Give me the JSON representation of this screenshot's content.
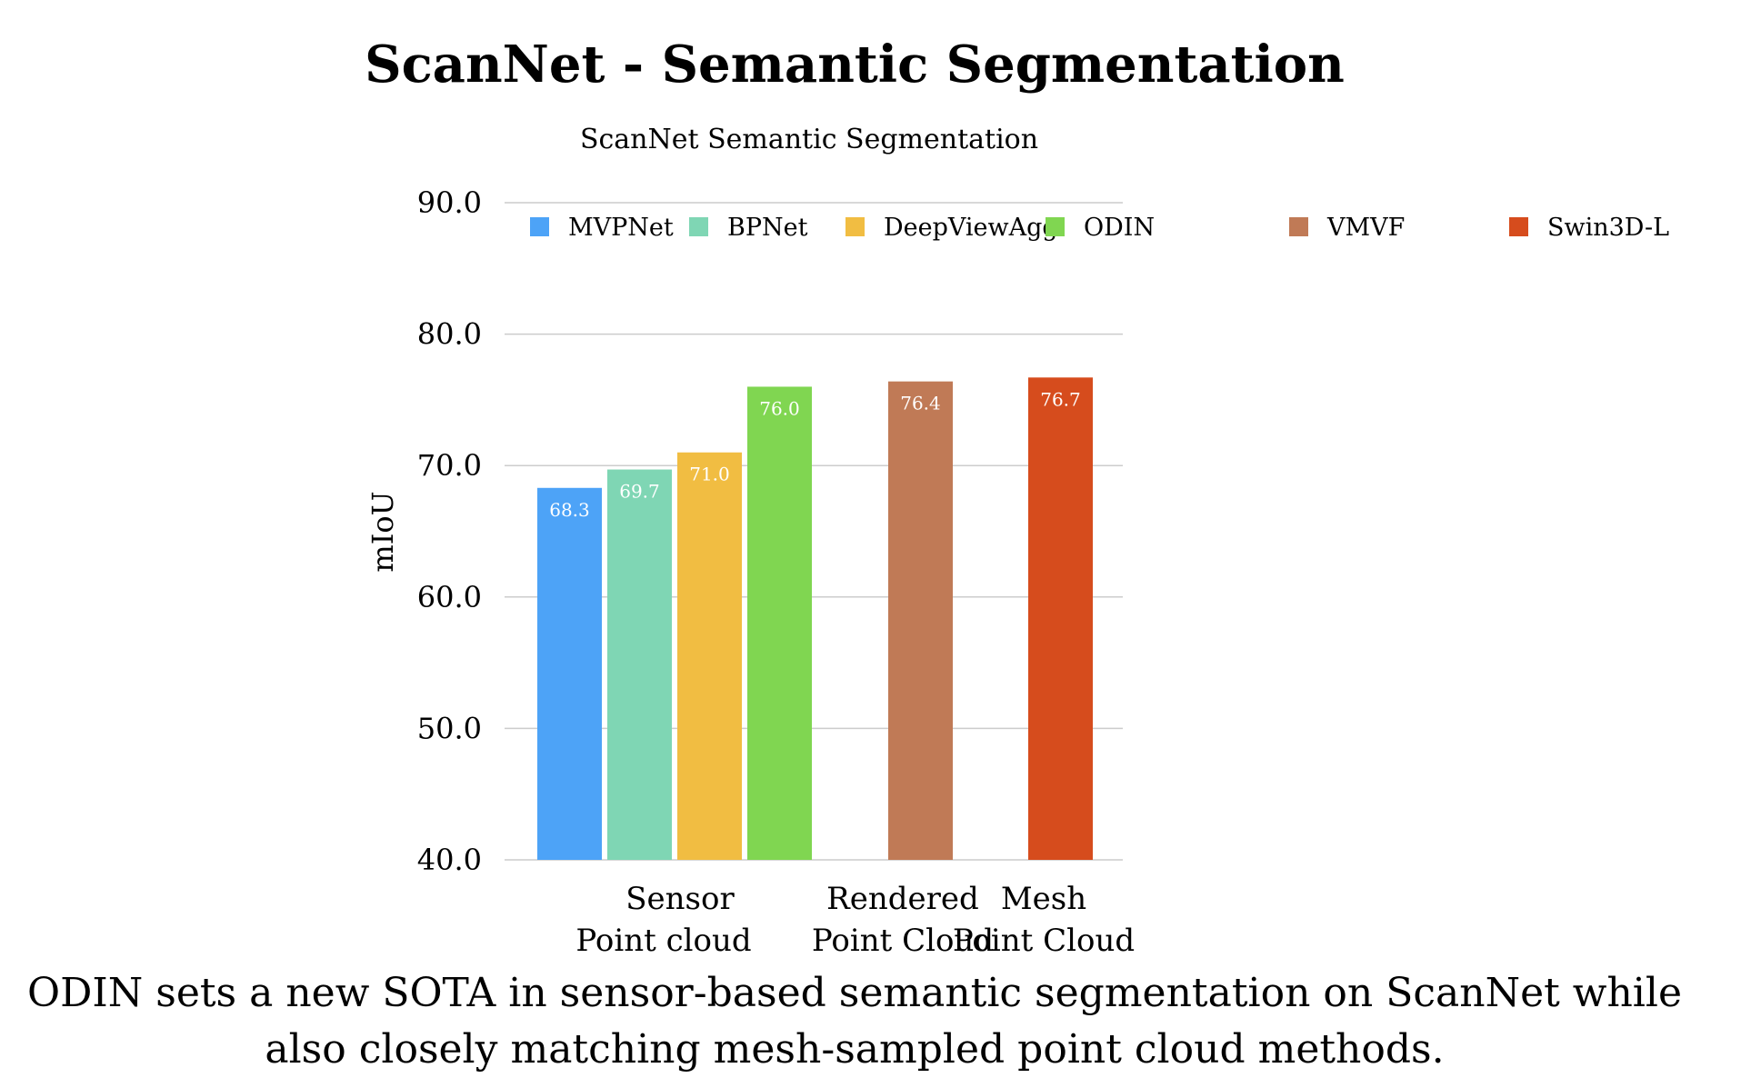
{
  "page": {
    "title": "ScanNet - Semantic Segmentation",
    "caption": "ODIN sets a new SOTA in sensor-based semantic segmentation on ScanNet while also closely matching mesh-sampled point cloud methods."
  },
  "chart_data": {
    "type": "bar",
    "title": "ScanNet Semantic Segmentation",
    "xlabel": "",
    "ylabel": "mIoU",
    "ylim": [
      40,
      90
    ],
    "yticks": [
      "40.0",
      "50.0",
      "60.0",
      "70.0",
      "80.0",
      "90.0"
    ],
    "grid": true,
    "legend_position": "top",
    "categories": [
      {
        "label_lines": [
          "Sensor",
          "Point cloud"
        ],
        "series": [
          "MVPNet",
          "BPNet",
          "DeepViewAgg",
          "ODIN"
        ]
      },
      {
        "label_lines": [
          "Rendered",
          "Point Cloud"
        ],
        "series": [
          "VMVF"
        ]
      },
      {
        "label_lines": [
          "Mesh",
          "Point Cloud"
        ],
        "series": [
          "Swin3D-L"
        ]
      }
    ],
    "series": [
      {
        "name": "MVPNet",
        "color": "#4da3f7",
        "value": 68.3,
        "label": "68.3"
      },
      {
        "name": "BPNet",
        "color": "#7fd6b4",
        "value": 69.7,
        "label": "69.7"
      },
      {
        "name": "DeepViewAgg",
        "color": "#f1bd42",
        "value": 71.0,
        "label": "71.0"
      },
      {
        "name": "ODIN",
        "color": "#80d651",
        "value": 76.0,
        "label": "76.0"
      },
      {
        "name": "VMVF",
        "color": "#c07a56",
        "value": 76.4,
        "label": "76.4"
      },
      {
        "name": "Swin3D-L",
        "color": "#d64c1d",
        "value": 76.7,
        "label": "76.7"
      }
    ]
  }
}
